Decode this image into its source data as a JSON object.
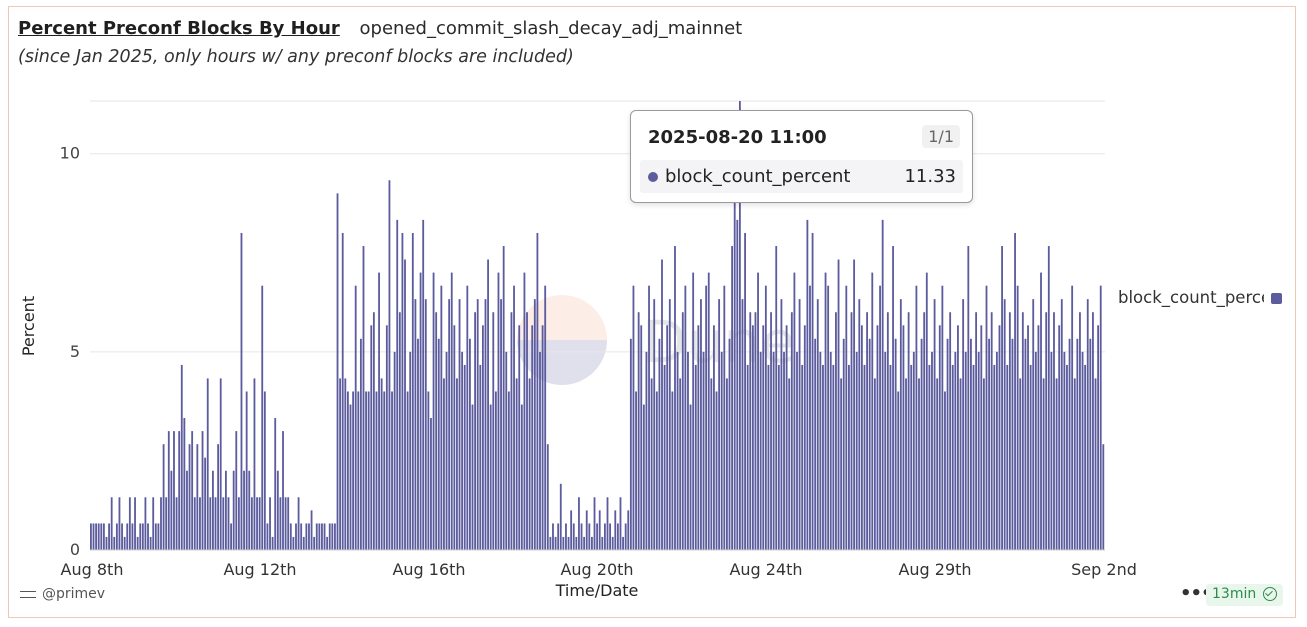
{
  "header": {
    "title": "Percent Preconf Blocks By Hour",
    "query_name": "opened_commit_slash_decay_adj_mainnet",
    "subtitle": "(since Jan 2025, only hours w/ any preconf blocks are included)"
  },
  "tooltip": {
    "title": "2025-08-20 11:00",
    "count": "1/1",
    "series_label": "block_count_percent",
    "value": "11.33"
  },
  "legend": {
    "label": "block_count_percent"
  },
  "footer": {
    "author": "@primev",
    "more": "•••",
    "refresh": "13min"
  },
  "colors": {
    "bar": "#5b5b9e",
    "badge_text": "#2e8b4a"
  },
  "chart_data": {
    "type": "bar",
    "xlabel": "Time/Date",
    "ylabel": "Percent",
    "ylim": [
      0,
      11.33
    ],
    "y_ticks": [
      0,
      5,
      10
    ],
    "x_ticks": [
      "Aug 8th",
      "Aug 12th",
      "Aug 16th",
      "Aug 20th",
      "Aug 24th",
      "Aug 29th",
      "Sep 2nd"
    ],
    "grid": true,
    "legend_position": "right",
    "series": [
      {
        "name": "block_count_percent",
        "values": [
          0.67,
          0.67,
          0.67,
          0.67,
          0.67,
          0.67,
          0.33,
          0.67,
          1.33,
          0.33,
          0.67,
          1.33,
          0.67,
          0.33,
          0.67,
          1.33,
          0.67,
          1.33,
          0.33,
          0.67,
          0.67,
          1.33,
          0.67,
          0.33,
          1.33,
          0.67,
          0.67,
          1.33,
          2.67,
          1.33,
          3.0,
          2.0,
          3.0,
          1.33,
          3.0,
          4.67,
          3.33,
          2.0,
          2.67,
          3.0,
          1.33,
          2.67,
          1.33,
          3.0,
          2.33,
          4.33,
          1.33,
          2.0,
          1.33,
          2.67,
          4.33,
          1.33,
          2.0,
          1.33,
          0.67,
          2.0,
          3.0,
          1.33,
          8.0,
          2.0,
          4.0,
          2.0,
          1.33,
          4.33,
          1.33,
          1.33,
          6.67,
          4.0,
          0.67,
          1.33,
          0.33,
          3.33,
          2.0,
          1.33,
          3.0,
          1.33,
          1.33,
          0.67,
          0.33,
          0.67,
          1.33,
          0.67,
          0.33,
          0.67,
          0.67,
          1.0,
          0.33,
          0.67,
          0.67,
          0.67,
          0.67,
          0.33,
          0.67,
          0.67,
          0.67,
          9.0,
          4.33,
          8.0,
          4.33,
          4.0,
          3.67,
          4.0,
          6.67,
          4.0,
          5.33,
          7.67,
          4.0,
          4.0,
          5.67,
          6.0,
          4.0,
          7.0,
          4.33,
          4.0,
          5.67,
          9.33,
          4.0,
          5.0,
          8.33,
          6.0,
          8.0,
          7.33,
          4.0,
          5.0,
          8.0,
          6.33,
          5.33,
          7.0,
          8.33,
          6.33,
          4.0,
          3.33,
          7.0,
          6.0,
          5.33,
          6.67,
          4.33,
          5.0,
          6.33,
          7.0,
          5.67,
          4.33,
          6.33,
          5.0,
          4.67,
          6.67,
          5.33,
          3.67,
          6.0,
          6.33,
          4.67,
          5.67,
          6.33,
          7.33,
          3.67,
          6.0,
          4.0,
          7.0,
          6.33,
          7.67,
          5.0,
          4.0,
          6.0,
          6.67,
          4.33,
          5.67,
          3.67,
          7.0,
          6.0,
          4.33,
          5.67,
          6.33,
          8.0,
          5.0,
          5.67,
          6.67,
          2.67,
          0.33,
          0.67,
          0.33,
          0.67,
          1.67,
          0.33,
          0.67,
          0.33,
          1.0,
          0.67,
          0.33,
          1.33,
          0.67,
          0.33,
          1.0,
          0.67,
          0.33,
          1.33,
          0.67,
          1.0,
          0.33,
          0.67,
          1.33,
          0.67,
          0.33,
          1.0,
          0.67,
          1.33,
          0.33,
          0.67,
          1.0,
          5.33,
          6.67,
          4.0,
          6.0,
          5.67,
          3.67,
          5.0,
          6.67,
          4.33,
          6.33,
          4.0,
          5.33,
          7.33,
          4.67,
          5.67,
          6.33,
          4.0,
          7.67,
          5.0,
          4.33,
          6.0,
          6.67,
          5.0,
          3.67,
          7.0,
          4.67,
          5.67,
          6.33,
          5.0,
          6.67,
          7.0,
          4.33,
          5.67,
          4.0,
          6.33,
          5.0,
          6.67,
          4.33,
          5.33,
          7.67,
          9.0,
          8.33,
          11.33,
          6.33,
          8.0,
          4.67,
          6.0,
          5.67,
          6.0,
          7.0,
          5.0,
          5.67,
          6.67,
          4.67,
          6.0,
          5.0,
          7.67,
          4.67,
          6.33,
          5.0,
          5.67,
          4.33,
          6.0,
          7.0,
          5.0,
          6.33,
          4.67,
          5.67,
          8.33,
          6.67,
          8.0,
          5.33,
          6.33,
          5.0,
          4.67,
          7.0,
          6.67,
          5.0,
          4.67,
          6.0,
          7.33,
          4.33,
          5.33,
          6.67,
          4.67,
          6.0,
          7.33,
          5.0,
          6.33,
          5.67,
          4.67,
          6.0,
          5.33,
          7.0,
          4.33,
          5.67,
          6.67,
          8.33,
          5.0,
          6.0,
          4.67,
          7.67,
          5.33,
          4.0,
          6.33,
          5.67,
          4.33,
          6.0,
          4.67,
          5.0,
          6.67,
          4.33,
          5.33,
          6.0,
          7.0,
          4.67,
          5.0,
          6.33,
          4.33,
          5.67,
          6.67,
          4.0,
          5.33,
          6.0,
          4.67,
          5.0,
          5.67,
          4.33,
          6.33,
          5.0,
          7.67,
          5.33,
          4.67,
          6.0,
          5.0,
          5.67,
          4.33,
          6.67,
          5.33,
          6.0,
          4.67,
          5.0,
          5.67,
          7.67,
          6.33,
          4.67,
          6.0,
          5.33,
          8.0,
          6.67,
          4.33,
          6.0,
          5.33,
          5.67,
          4.67,
          6.33,
          5.0,
          5.67,
          7.0,
          4.33,
          6.0,
          7.67,
          5.0,
          6.0,
          4.33,
          5.67,
          6.33,
          5.0,
          4.67,
          5.33,
          6.67,
          4.33,
          5.33,
          6.0,
          5.0,
          4.67,
          6.33,
          5.33,
          6.0,
          4.33,
          5.67,
          6.67,
          2.67
        ]
      }
    ]
  }
}
